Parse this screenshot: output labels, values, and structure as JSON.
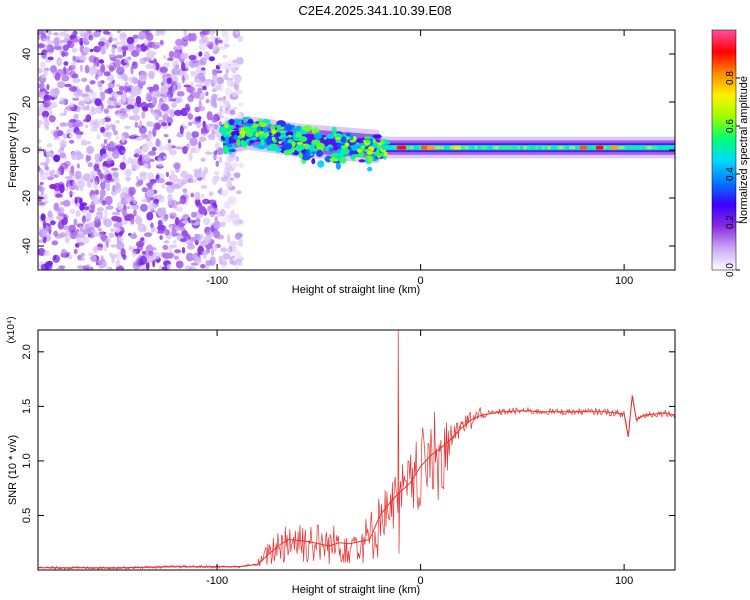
{
  "title": "C2E4.2025.341.10.39.E08",
  "chart_data": [
    {
      "type": "heatmap",
      "title": "C2E4.2025.341.10.39.E08",
      "xlabel": "Height of straight line (km)",
      "ylabel": "Frequency (Hz)",
      "xlim": [
        -188,
        125
      ],
      "ylim": [
        -50,
        50
      ],
      "xticks": [
        -100,
        0,
        100
      ],
      "yticks": [
        -40,
        -20,
        0,
        20,
        40
      ],
      "noise_region_x": [
        -188,
        -88
      ],
      "signal_ridge": [
        {
          "x": -97,
          "y": 5
        },
        {
          "x": -85,
          "y": 7
        },
        {
          "x": -75,
          "y": 6
        },
        {
          "x": -60,
          "y": 4
        },
        {
          "x": -45,
          "y": 3
        },
        {
          "x": -30,
          "y": 2
        },
        {
          "x": -15,
          "y": 1
        },
        {
          "x": 0,
          "y": 1
        },
        {
          "x": 25,
          "y": 1
        },
        {
          "x": 50,
          "y": 1
        },
        {
          "x": 75,
          "y": 1
        },
        {
          "x": 90,
          "y": 1
        },
        {
          "x": 100,
          "y": 1
        },
        {
          "x": 110,
          "y": 1
        },
        {
          "x": 125,
          "y": 1
        }
      ],
      "colorbar": {
        "label": "Normalized spectral amplitude",
        "range": [
          0.0,
          1.0
        ],
        "ticks": [
          "0.0",
          "0.2",
          "0.4",
          "0.6",
          "0.8"
        ],
        "colormap": [
          "#ffffff",
          "#c9a8f5",
          "#8a2be2",
          "#3c00ff",
          "#0078ff",
          "#00d8ff",
          "#00ff7a",
          "#9aff00",
          "#fff000",
          "#ff8c00",
          "#ff0000",
          "#ff4fa0"
        ]
      }
    },
    {
      "type": "line",
      "xlabel": "Height of straight line (km)",
      "ylabel": "SNR (10 * v/v)",
      "scale_label": "(x10⁴)",
      "xlim": [
        -188,
        125
      ],
      "ylim": [
        0,
        2.2
      ],
      "xticks": [
        -100,
        0,
        100
      ],
      "yticks": [
        0.5,
        1.0,
        1.5,
        2.0
      ],
      "series": [
        {
          "name": "SNR",
          "color": "#e8312f",
          "x": [
            -188,
            -150,
            -120,
            -100,
            -90,
            -80,
            -75,
            -70,
            -65,
            -60,
            -55,
            -50,
            -45,
            -40,
            -35,
            -30,
            -25,
            -20,
            -15,
            -11,
            -8,
            -5,
            0,
            5,
            10,
            15,
            20,
            25,
            30,
            40,
            50,
            60,
            70,
            80,
            90,
            100,
            102,
            104,
            106,
            110,
            115,
            120,
            125
          ],
          "y": [
            0.02,
            0.02,
            0.03,
            0.03,
            0.03,
            0.05,
            0.14,
            0.22,
            0.28,
            0.27,
            0.26,
            0.24,
            0.22,
            0.25,
            0.24,
            0.26,
            0.28,
            0.5,
            0.62,
            0.7,
            0.75,
            0.8,
            0.95,
            1.05,
            1.12,
            1.2,
            1.3,
            1.38,
            1.42,
            1.45,
            1.46,
            1.45,
            1.45,
            1.45,
            1.45,
            1.43,
            1.22,
            1.6,
            1.38,
            1.42,
            1.43,
            1.44,
            1.42
          ]
        }
      ],
      "spike": {
        "x": -11,
        "y": 2.2
      }
    }
  ]
}
